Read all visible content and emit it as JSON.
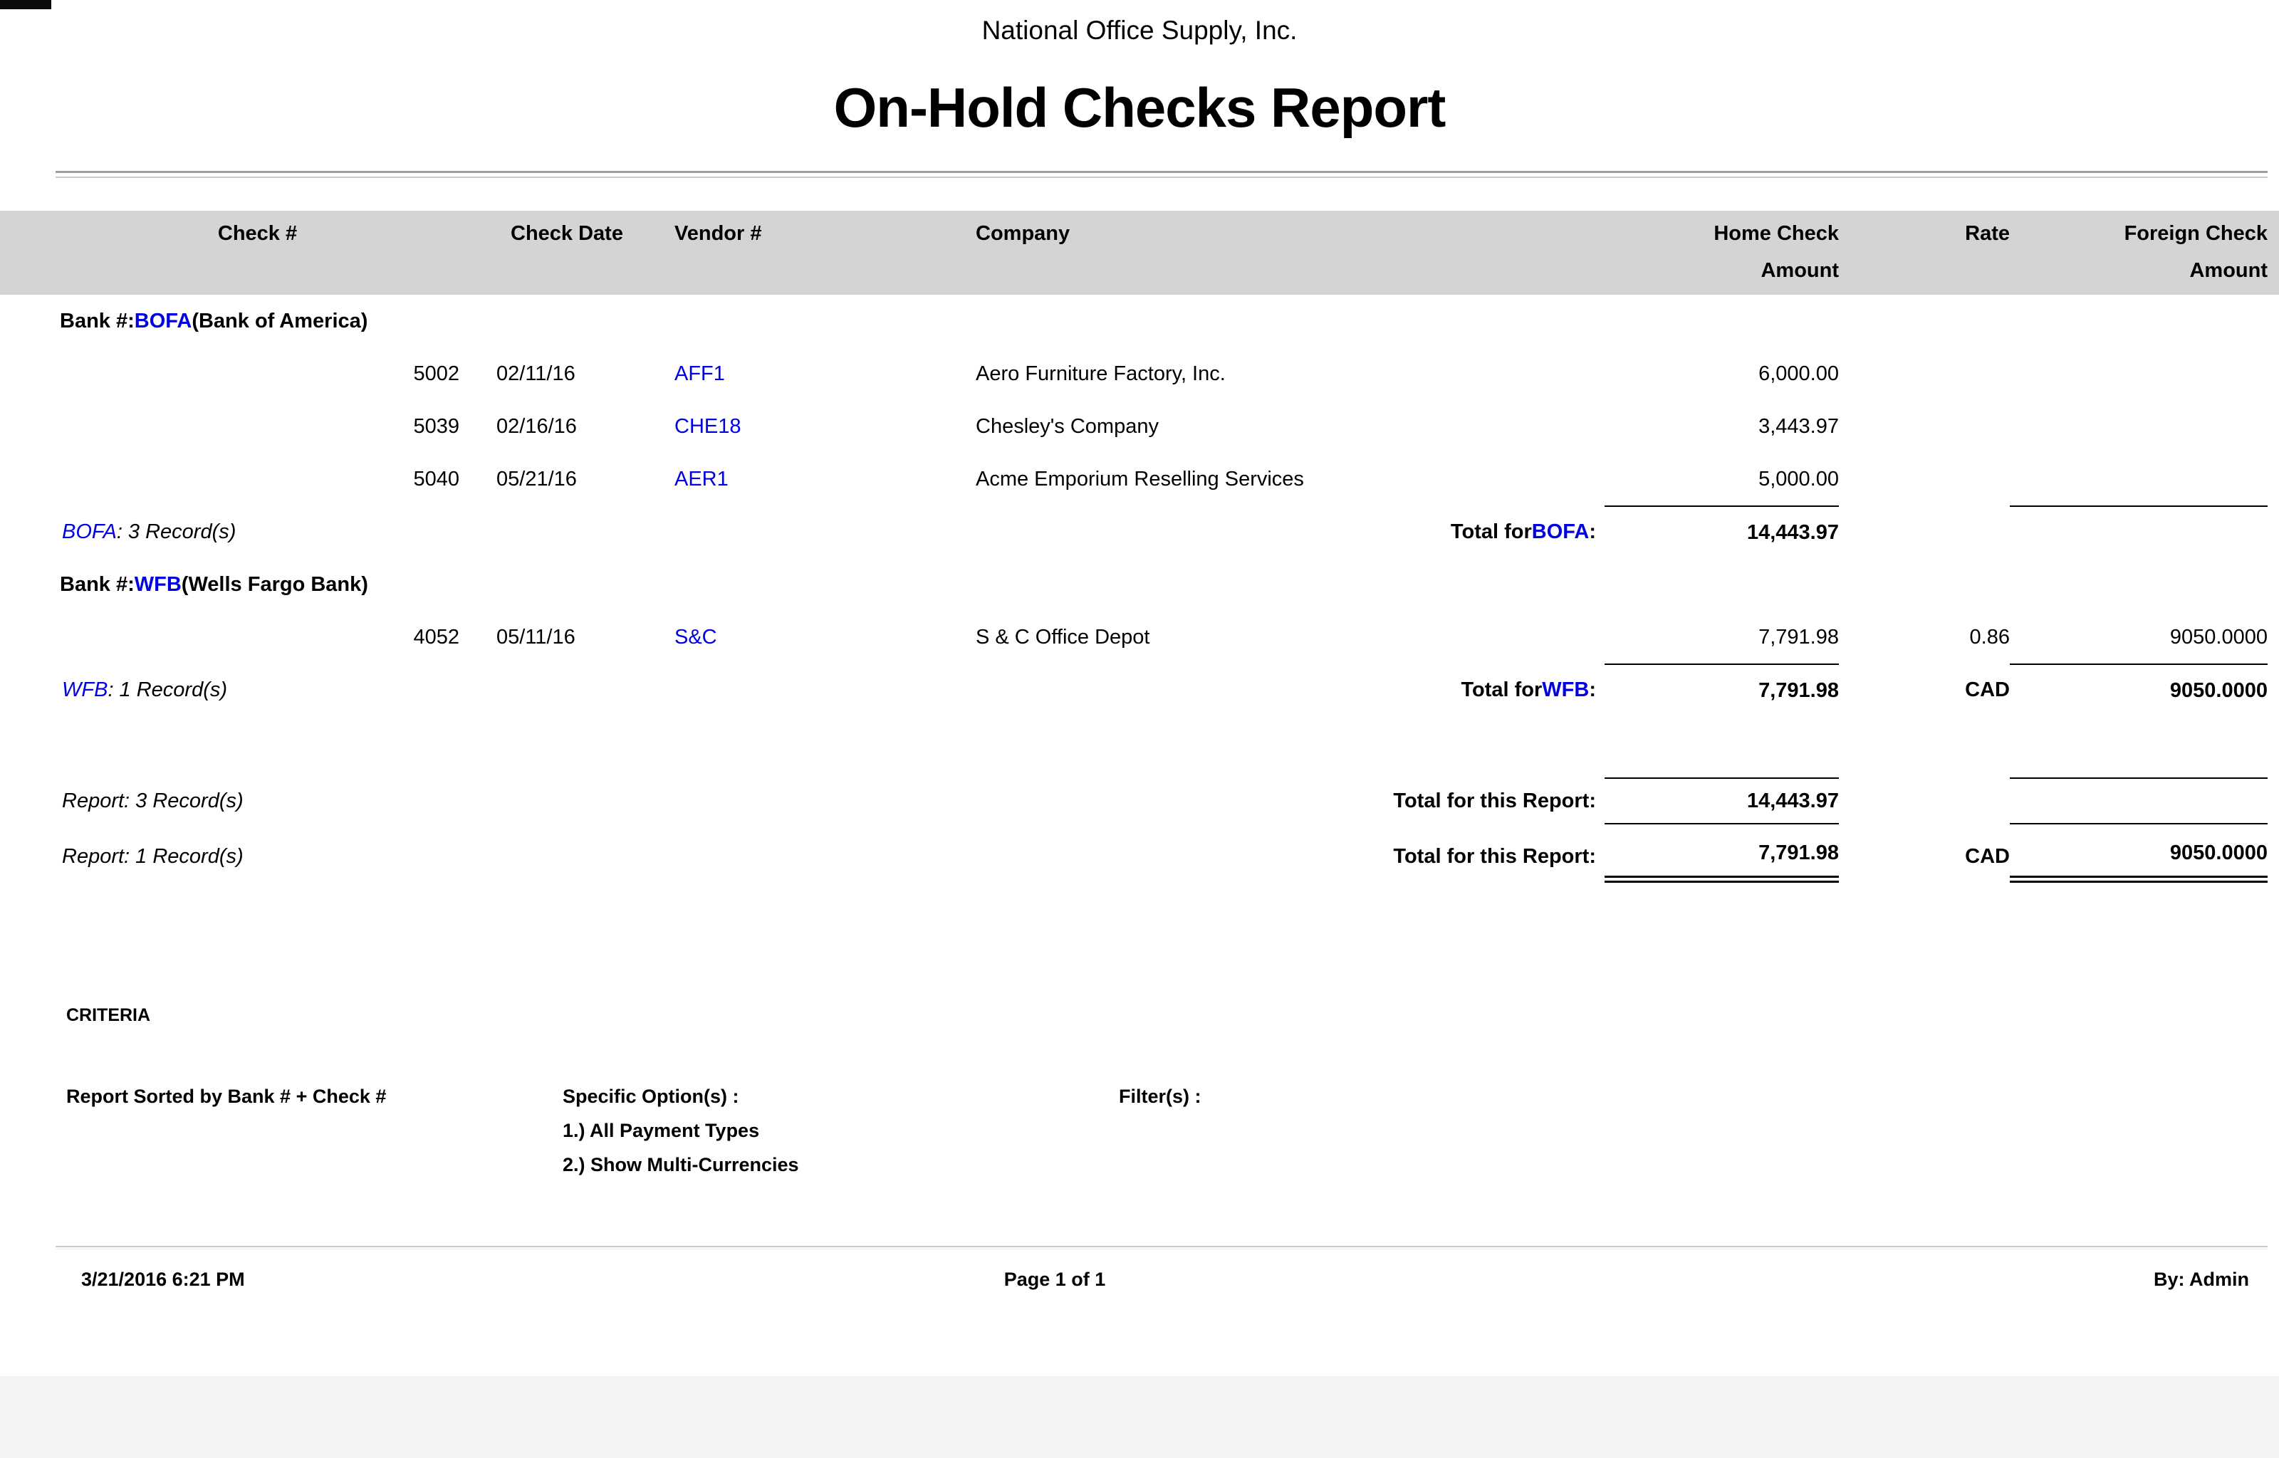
{
  "colors": {
    "accent_blue": "#0000E0",
    "header_band": "#D4D4D4",
    "bottom_strip": "#F3F3F3"
  },
  "header": {
    "company": "National Office Supply, Inc.",
    "title": "On-Hold Checks Report"
  },
  "table": {
    "columns": {
      "check_no": "Check #",
      "check_date": "Check Date",
      "vendor_no": "Vendor #",
      "company": "Company",
      "home_line1": "Home Check",
      "home_line2": "Amount",
      "rate": "Rate",
      "foreign_line1": "Foreign Check",
      "foreign_line2": "Amount"
    },
    "groups": [
      {
        "bank_label": "Bank #: ",
        "bank_code": "BOFA",
        "bank_name": " (Bank of America)",
        "rows": [
          {
            "check_no": "5002",
            "check_date": "02/11/16",
            "vendor_no": "AFF1",
            "company": "Aero Furniture Factory, Inc.",
            "home_amount": "6,000.00",
            "rate": "",
            "foreign_amount": ""
          },
          {
            "check_no": "5039",
            "check_date": "02/16/16",
            "vendor_no": "CHE18",
            "company": "Chesley's Company",
            "home_amount": "3,443.97",
            "rate": "",
            "foreign_amount": ""
          },
          {
            "check_no": "5040",
            "check_date": "05/21/16",
            "vendor_no": "AER1",
            "company": "Acme Emporium Reselling Services",
            "home_amount": "5,000.00",
            "rate": "",
            "foreign_amount": ""
          }
        ],
        "summary": {
          "records_code": "BOFA",
          "records_text": ": 3 Record(s)",
          "total_prefix": "Total for ",
          "total_code": "BOFA",
          "total_colon": ":",
          "home_total": "14,443.97",
          "rate_total": "",
          "foreign_total": ""
        }
      },
      {
        "bank_label": "Bank #: ",
        "bank_code": "WFB",
        "bank_name": " (Wells Fargo Bank)",
        "rows": [
          {
            "check_no": "4052",
            "check_date": "05/11/16",
            "vendor_no": "S&C",
            "company": "S & C Office Depot",
            "home_amount": "7,791.98",
            "rate": "0.86",
            "foreign_amount": "9050.0000"
          }
        ],
        "summary": {
          "records_code": "WFB",
          "records_text": ": 1 Record(s)",
          "total_prefix": "Total for ",
          "total_code": "WFB",
          "total_colon": ":",
          "home_total": "7,791.98",
          "rate_total": "CAD",
          "foreign_total": "9050.0000"
        }
      }
    ],
    "report_totals": [
      {
        "records": "Report: 3 Record(s)",
        "label": "Total for this Report:",
        "home_total": "14,443.97",
        "rate_total": "",
        "foreign_total": ""
      },
      {
        "records": "Report: 1 Record(s)",
        "label": "Total for this Report:",
        "home_total": "7,791.98",
        "rate_total": "CAD",
        "foreign_total": "9050.0000"
      }
    ]
  },
  "criteria": {
    "heading": "CRITERIA",
    "sorted_by": "Report Sorted by Bank # + Check #",
    "options_label": "Specific Option(s) :",
    "options": [
      "1.) All Payment Types",
      "2.) Show Multi-Currencies"
    ],
    "filters_label": "Filter(s) :"
  },
  "footer": {
    "datetime": "3/21/2016 6:21 PM",
    "page": "Page 1 of 1",
    "by": "By: Admin"
  }
}
